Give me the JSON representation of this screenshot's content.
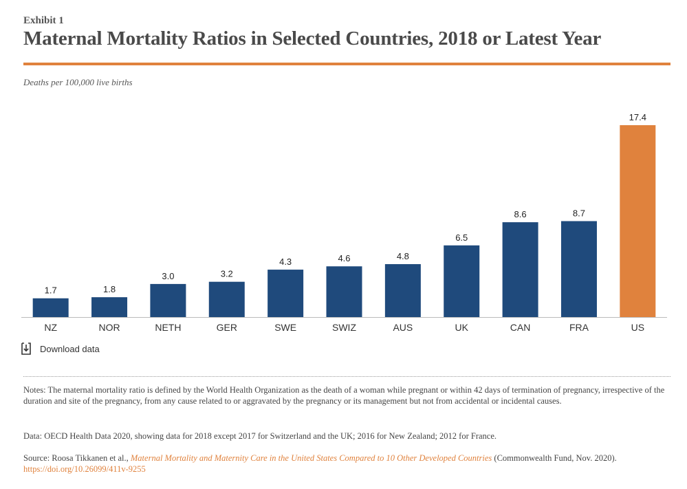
{
  "header": {
    "exhibit": "Exhibit 1",
    "title": "Maternal Mortality Ratios in Selected Countries, 2018 or Latest Year",
    "unit_label": "Deaths per 100,000 live births"
  },
  "download": {
    "label": "Download data",
    "icon": "download-icon"
  },
  "notes": {
    "definition": "Notes: The maternal mortality ratio is defined by the World Health Organization as the death of a woman while pregnant or within 42 days of termination of pregnancy, irrespective of the duration and site of the pregnancy, from any cause related to or aggravated by the pregnancy or its management but not from accidental or incidental causes.",
    "data_source": "Data: OECD Health Data 2020, showing data for 2018 except 2017 for Switzerland and the UK; 2016 for New Zealand; 2012 for France.",
    "source_prefix": "Source: Roosa Tikkanen et al., ",
    "source_title": "Maternal Mortality and Maternity Care in the United States Compared to 10 Other Developed Countries",
    "source_suffix": " (Commonwealth Fund, Nov. 2020). ",
    "source_link": "https://doi.org/10.26099/411v-9255"
  },
  "colors": {
    "bar": "#1f4a7c",
    "highlight": "#e0823d",
    "accent": "#e0823d"
  },
  "chart_data": {
    "type": "bar",
    "categories": [
      "NZ",
      "NOR",
      "NETH",
      "GER",
      "SWE",
      "SWIZ",
      "AUS",
      "UK",
      "CAN",
      "FRA",
      "US"
    ],
    "values": [
      1.7,
      1.8,
      3.0,
      3.2,
      4.3,
      4.6,
      4.8,
      6.5,
      8.6,
      8.7,
      17.4
    ],
    "value_labels": [
      "1.7",
      "1.8",
      "3.0",
      "3.2",
      "4.3",
      "4.6",
      "4.8",
      "6.5",
      "8.6",
      "8.7",
      "17.4"
    ],
    "highlight_category": "US",
    "ylabel": "Deaths per 100,000 live births",
    "ylim": [
      0,
      17.4
    ],
    "grid": false,
    "legend": "none"
  }
}
